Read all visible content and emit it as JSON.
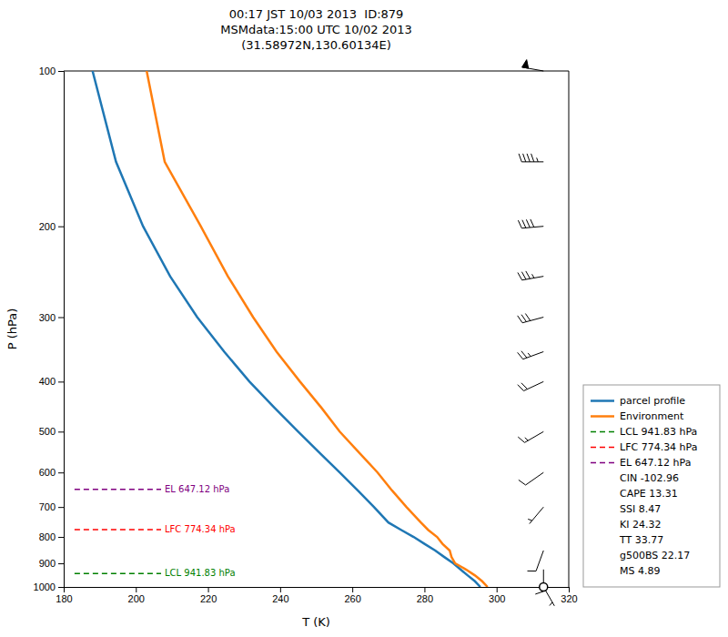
{
  "chart_data": {
    "type": "line",
    "title": "00:17 JST 10/03 2013  ID:879\nMSMdata:15:00 UTC 10/02 2013\n(31.58972N,130.60134E)",
    "xlabel": "T (K)",
    "ylabel": "P (hPa)",
    "log": "y",
    "xlim": [
      180,
      320
    ],
    "ylim": [
      1000,
      100
    ],
    "xticks": [
      180,
      200,
      220,
      240,
      260,
      280,
      300,
      320
    ],
    "yticks": [
      100,
      200,
      300,
      400,
      500,
      600,
      700,
      800,
      900,
      1000
    ],
    "grid": false,
    "legend": "lower right",
    "series": [
      {
        "name": "parcel profile",
        "color": "#1f77b4",
        "line_style": "solid",
        "x": [
          295.5,
          294.0,
          292.0,
          290.0,
          288.0,
          285.5,
          283.0,
          280.0,
          277.0,
          273.5,
          270.0,
          266.0,
          261.5,
          256.5,
          251.0,
          245.0,
          238.5,
          231.5,
          224.5,
          217.0,
          209.5,
          202.0,
          194.5,
          188.0
        ],
        "values": [
          1000,
          975,
          950,
          925,
          900,
          875,
          850,
          825,
          800,
          775,
          750,
          700,
          650,
          600,
          550,
          500,
          450,
          400,
          350,
          300,
          250,
          200,
          150,
          100
        ]
      },
      {
        "name": "Environment",
        "color": "#ff7f0e",
        "line_style": "solid",
        "x": [
          297.5,
          296.0,
          294.0,
          291.5,
          288.5,
          287.5,
          287.0,
          285.0,
          283.5,
          281.0,
          279.0,
          275.0,
          271.0,
          267.0,
          262.0,
          256.5,
          251.5,
          245.5,
          239.0,
          232.5,
          225.5,
          218.0,
          208.0,
          203.0
        ],
        "values": [
          1000,
          975,
          950,
          925,
          900,
          875,
          850,
          825,
          800,
          775,
          750,
          700,
          650,
          600,
          550,
          500,
          450,
          400,
          350,
          300,
          250,
          200,
          150,
          100
        ]
      },
      {
        "name": "LCL 941.83 hPa",
        "color": "green",
        "line_style": "dashed",
        "x": [
          183,
          207
        ],
        "values": [
          941.83,
          941.83
        ]
      },
      {
        "name": "LFC 774.34 hPa",
        "color": "red",
        "line_style": "dashed",
        "x": [
          183,
          207
        ],
        "values": [
          774.34,
          774.34
        ]
      },
      {
        "name": "EL 647.12 hPa",
        "color": "purple",
        "line_style": "dashed",
        "x": [
          183,
          207
        ],
        "values": [
          647.12,
          647.12
        ]
      }
    ],
    "annotations": [
      "CIN -102.96",
      "CAPE 13.31",
      "SSI 8.47",
      "KI 24.32",
      "TT 33.77",
      "g500BS 22.17",
      "MS 4.89"
    ],
    "wind": {
      "x": 313,
      "pressures": [
        100,
        150,
        200,
        250,
        300,
        350,
        400,
        500,
        600,
        700,
        850,
        925,
        1000
      ],
      "speeds": [
        50,
        45,
        40,
        35,
        30,
        25,
        20,
        15,
        10,
        5,
        10,
        15,
        3
      ],
      "directions": [
        280,
        270,
        265,
        260,
        255,
        250,
        245,
        240,
        235,
        220,
        200,
        180,
        150
      ]
    }
  }
}
